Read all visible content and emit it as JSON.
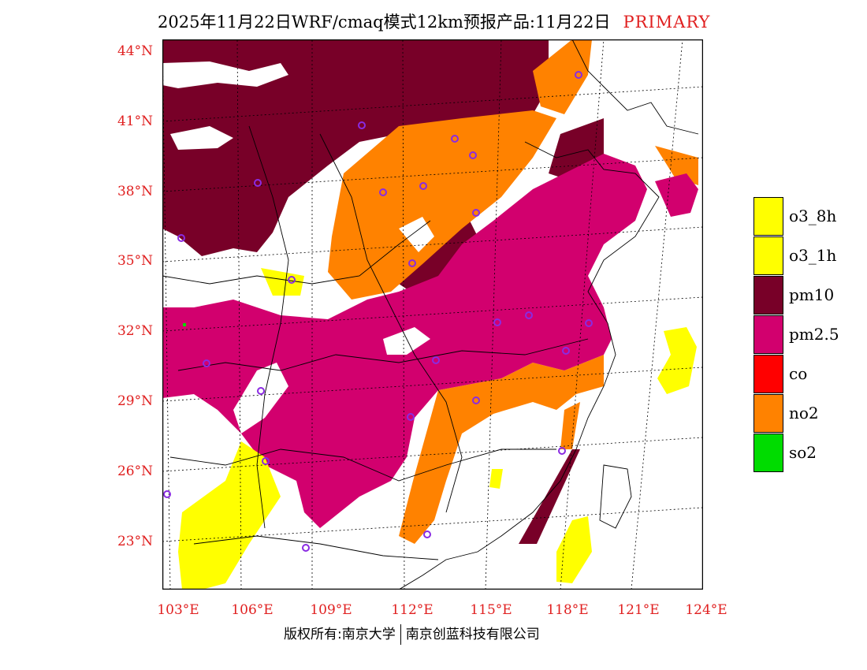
{
  "header": {
    "title": "2025年11月22日WRF/cmaq模式12km预报产品:11月22日",
    "product_type": "PRIMARY"
  },
  "axes": {
    "lat_labels": [
      "44°N",
      "41°N",
      "38°N",
      "35°N",
      "32°N",
      "29°N",
      "26°N",
      "23°N"
    ],
    "lon_labels": [
      "103°E",
      "106°E",
      "109°E",
      "112°E",
      "115°E",
      "118°E",
      "121°E",
      "124°E"
    ]
  },
  "legend": {
    "items": [
      {
        "label": "o3_8h",
        "color": "#ffff00"
      },
      {
        "label": "o3_1h",
        "color": "#ffff00"
      },
      {
        "label": "pm10",
        "color": "#780028"
      },
      {
        "label": "pm2.5",
        "color": "#d2006e"
      },
      {
        "label": "co",
        "color": "#ff0000"
      },
      {
        "label": "no2",
        "color": "#ff8200"
      },
      {
        "label": "so2",
        "color": "#00dc00"
      }
    ]
  },
  "footer": {
    "copyright": "版权所有:南京大学",
    "company": "南京创蓝科技有限公司"
  }
}
